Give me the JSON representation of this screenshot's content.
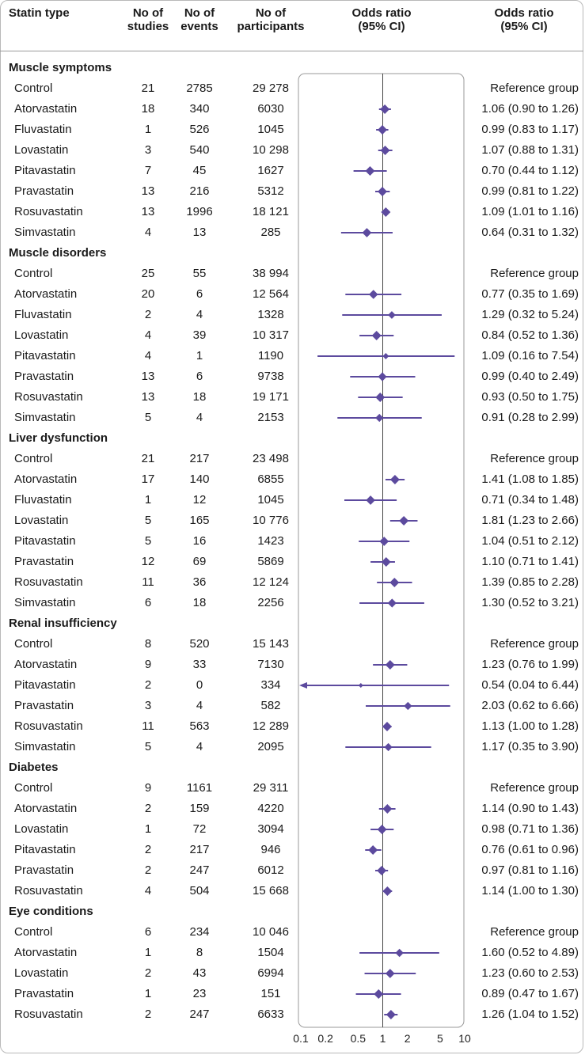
{
  "headers": {
    "statin_type": "Statin type",
    "studies": [
      "No of",
      "studies"
    ],
    "events": [
      "No of",
      "events"
    ],
    "participants": [
      "No of",
      "participants"
    ],
    "or_plot": [
      "Odds ratio",
      "(95% CI)"
    ],
    "or_text": [
      "Odds ratio",
      "(95% CI)"
    ]
  },
  "colors": {
    "accent": "#5c4a9e",
    "panel_border": "#9a9a9a",
    "axis": "#444444"
  },
  "chart_data": {
    "type": "forest",
    "x_scale": "log",
    "xlim": [
      0.1,
      10
    ],
    "reference_line": 1,
    "x_ticks": [
      0.1,
      0.2,
      0.5,
      1,
      2,
      5,
      10
    ],
    "x_tick_labels": [
      "0.1",
      "0.2",
      "0.5",
      "1",
      "2",
      "5",
      "10"
    ],
    "sections": [
      {
        "name": "Muscle symptoms",
        "rows": [
          {
            "label": "Control",
            "studies": "21",
            "events": "2785",
            "participants": "29 278",
            "or_text": "Reference group",
            "or": null,
            "lo": null,
            "hi": null
          },
          {
            "label": "Atorvastatin",
            "studies": "18",
            "events": "340",
            "participants": "6030",
            "or_text": "1.06 (0.90 to 1.26)",
            "or": 1.06,
            "lo": 0.9,
            "hi": 1.26
          },
          {
            "label": "Fluvastatin",
            "studies": "1",
            "events": "526",
            "participants": "1045",
            "or_text": "0.99 (0.83 to 1.17)",
            "or": 0.99,
            "lo": 0.83,
            "hi": 1.17
          },
          {
            "label": "Lovastatin",
            "studies": "3",
            "events": "540",
            "participants": "10 298",
            "or_text": "1.07 (0.88 to 1.31)",
            "or": 1.07,
            "lo": 0.88,
            "hi": 1.31
          },
          {
            "label": "Pitavastatin",
            "studies": "7",
            "events": "45",
            "participants": "1627",
            "or_text": "0.70 (0.44 to 1.12)",
            "or": 0.7,
            "lo": 0.44,
            "hi": 1.12
          },
          {
            "label": "Pravastatin",
            "studies": "13",
            "events": "216",
            "participants": "5312",
            "or_text": "0.99 (0.81 to 1.22)",
            "or": 0.99,
            "lo": 0.81,
            "hi": 1.22
          },
          {
            "label": "Rosuvastatin",
            "studies": "13",
            "events": "1996",
            "participants": "18 121",
            "or_text": "1.09 (1.01 to 1.16)",
            "or": 1.09,
            "lo": 1.01,
            "hi": 1.16
          },
          {
            "label": "Simvastatin",
            "studies": "4",
            "events": "13",
            "participants": "285",
            "or_text": "0.64 (0.31 to 1.32)",
            "or": 0.64,
            "lo": 0.31,
            "hi": 1.32
          }
        ]
      },
      {
        "name": "Muscle disorders",
        "rows": [
          {
            "label": "Control",
            "studies": "25",
            "events": "55",
            "participants": "38 994",
            "or_text": "Reference group",
            "or": null,
            "lo": null,
            "hi": null
          },
          {
            "label": "Atorvastatin",
            "studies": "20",
            "events": "6",
            "participants": "12 564",
            "or_text": "0.77 (0.35 to 1.69)",
            "or": 0.77,
            "lo": 0.35,
            "hi": 1.69
          },
          {
            "label": "Fluvastatin",
            "studies": "2",
            "events": "4",
            "participants": "1328",
            "or_text": "1.29 (0.32 to 5.24)",
            "or": 1.29,
            "lo": 0.32,
            "hi": 5.24
          },
          {
            "label": "Lovastatin",
            "studies": "4",
            "events": "39",
            "participants": "10 317",
            "or_text": "0.84 (0.52 to 1.36)",
            "or": 0.84,
            "lo": 0.52,
            "hi": 1.36
          },
          {
            "label": "Pitavastatin",
            "studies": "4",
            "events": "1",
            "participants": "1190",
            "or_text": "1.09 (0.16 to 7.54)",
            "or": 1.09,
            "lo": 0.16,
            "hi": 7.54
          },
          {
            "label": "Pravastatin",
            "studies": "13",
            "events": "6",
            "participants": "9738",
            "or_text": "0.99 (0.40 to 2.49)",
            "or": 0.99,
            "lo": 0.4,
            "hi": 2.49
          },
          {
            "label": "Rosuvastatin",
            "studies": "13",
            "events": "18",
            "participants": "19 171",
            "or_text": "0.93 (0.50 to 1.75)",
            "or": 0.93,
            "lo": 0.5,
            "hi": 1.75
          },
          {
            "label": "Simvastatin",
            "studies": "5",
            "events": "4",
            "participants": "2153",
            "or_text": "0.91 (0.28 to 2.99)",
            "or": 0.91,
            "lo": 0.28,
            "hi": 2.99
          }
        ]
      },
      {
        "name": "Liver dysfunction",
        "rows": [
          {
            "label": "Control",
            "studies": "21",
            "events": "217",
            "participants": "23 498",
            "or_text": "Reference group",
            "or": null,
            "lo": null,
            "hi": null
          },
          {
            "label": "Atorvastatin",
            "studies": "17",
            "events": "140",
            "participants": "6855",
            "or_text": "1.41 (1.08 to 1.85)",
            "or": 1.41,
            "lo": 1.08,
            "hi": 1.85
          },
          {
            "label": "Fluvastatin",
            "studies": "1",
            "events": "12",
            "participants": "1045",
            "or_text": "0.71 (0.34 to 1.48)",
            "or": 0.71,
            "lo": 0.34,
            "hi": 1.48
          },
          {
            "label": "Lovastatin",
            "studies": "5",
            "events": "165",
            "participants": "10 776",
            "or_text": "1.81 (1.23 to 2.66)",
            "or": 1.81,
            "lo": 1.23,
            "hi": 2.66
          },
          {
            "label": "Pitavastatin",
            "studies": "5",
            "events": "16",
            "participants": "1423",
            "or_text": "1.04 (0.51 to 2.12)",
            "or": 1.04,
            "lo": 0.51,
            "hi": 2.12
          },
          {
            "label": "Pravastatin",
            "studies": "12",
            "events": "69",
            "participants": "5869",
            "or_text": "1.10 (0.71 to 1.41)",
            "or": 1.1,
            "lo": 0.71,
            "hi": 1.41
          },
          {
            "label": "Rosuvastatin",
            "studies": "11",
            "events": "36",
            "participants": "12 124",
            "or_text": "1.39 (0.85 to 2.28)",
            "or": 1.39,
            "lo": 0.85,
            "hi": 2.28
          },
          {
            "label": "Simvastatin",
            "studies": "6",
            "events": "18",
            "participants": "2256",
            "or_text": "1.30 (0.52 to 3.21)",
            "or": 1.3,
            "lo": 0.52,
            "hi": 3.21
          }
        ]
      },
      {
        "name": "Renal insufficiency",
        "rows": [
          {
            "label": "Control",
            "studies": "8",
            "events": "520",
            "participants": "15 143",
            "or_text": "Reference group",
            "or": null,
            "lo": null,
            "hi": null
          },
          {
            "label": "Atorvastatin",
            "studies": "9",
            "events": "33",
            "participants": "7130",
            "or_text": "1.23 (0.76 to 1.99)",
            "or": 1.23,
            "lo": 0.76,
            "hi": 1.99
          },
          {
            "label": "Pitavastatin",
            "studies": "2",
            "events": "0",
            "participants": "334",
            "or_text": "0.54 (0.04 to 6.44)",
            "or": 0.54,
            "lo": 0.04,
            "hi": 6.44
          },
          {
            "label": "Pravastatin",
            "studies": "3",
            "events": "4",
            "participants": "582",
            "or_text": "2.03 (0.62 to 6.66)",
            "or": 2.03,
            "lo": 0.62,
            "hi": 6.66
          },
          {
            "label": "Rosuvastatin",
            "studies": "11",
            "events": "563",
            "participants": "12 289",
            "or_text": "1.13 (1.00 to 1.28)",
            "or": 1.13,
            "lo": 1.0,
            "hi": 1.28
          },
          {
            "label": "Simvastatin",
            "studies": "5",
            "events": "4",
            "participants": "2095",
            "or_text": "1.17 (0.35 to 3.90)",
            "or": 1.17,
            "lo": 0.35,
            "hi": 3.9
          }
        ]
      },
      {
        "name": "Diabetes",
        "rows": [
          {
            "label": "Control",
            "studies": "9",
            "events": "1161",
            "participants": "29 311",
            "or_text": "Reference group",
            "or": null,
            "lo": null,
            "hi": null
          },
          {
            "label": "Atorvastatin",
            "studies": "2",
            "events": "159",
            "participants": "4220",
            "or_text": "1.14 (0.90 to 1.43)",
            "or": 1.14,
            "lo": 0.9,
            "hi": 1.43
          },
          {
            "label": "Lovastatin",
            "studies": "1",
            "events": "72",
            "participants": "3094",
            "or_text": "0.98 (0.71 to 1.36)",
            "or": 0.98,
            "lo": 0.71,
            "hi": 1.36
          },
          {
            "label": "Pitavastatin",
            "studies": "2",
            "events": "217",
            "participants": "946",
            "or_text": "0.76 (0.61 to 0.96)",
            "or": 0.76,
            "lo": 0.61,
            "hi": 0.96
          },
          {
            "label": "Pravastatin",
            "studies": "2",
            "events": "247",
            "participants": "6012",
            "or_text": "0.97 (0.81 to 1.16)",
            "or": 0.97,
            "lo": 0.81,
            "hi": 1.16
          },
          {
            "label": "Rosuvastatin",
            "studies": "4",
            "events": "504",
            "participants": "15 668",
            "or_text": "1.14 (1.00 to 1.30)",
            "or": 1.14,
            "lo": 1.0,
            "hi": 1.3
          }
        ]
      },
      {
        "name": "Eye conditions",
        "rows": [
          {
            "label": "Control",
            "studies": "6",
            "events": "234",
            "participants": "10 046",
            "or_text": "Reference group",
            "or": null,
            "lo": null,
            "hi": null
          },
          {
            "label": "Atorvastatin",
            "studies": "1",
            "events": "8",
            "participants": "1504",
            "or_text": "1.60 (0.52 to 4.89)",
            "or": 1.6,
            "lo": 0.52,
            "hi": 4.89
          },
          {
            "label": "Lovastatin",
            "studies": "2",
            "events": "43",
            "participants": "6994",
            "or_text": "1.23 (0.60 to 2.53)",
            "or": 1.23,
            "lo": 0.6,
            "hi": 2.53
          },
          {
            "label": "Pravastatin",
            "studies": "1",
            "events": "23",
            "participants": "151",
            "or_text": "0.89 (0.47 to 1.67)",
            "or": 0.89,
            "lo": 0.47,
            "hi": 1.67
          },
          {
            "label": "Rosuvastatin",
            "studies": "2",
            "events": "247",
            "participants": "6633",
            "or_text": "1.26 (1.04 to 1.52)",
            "or": 1.26,
            "lo": 1.04,
            "hi": 1.52
          }
        ]
      }
    ]
  }
}
